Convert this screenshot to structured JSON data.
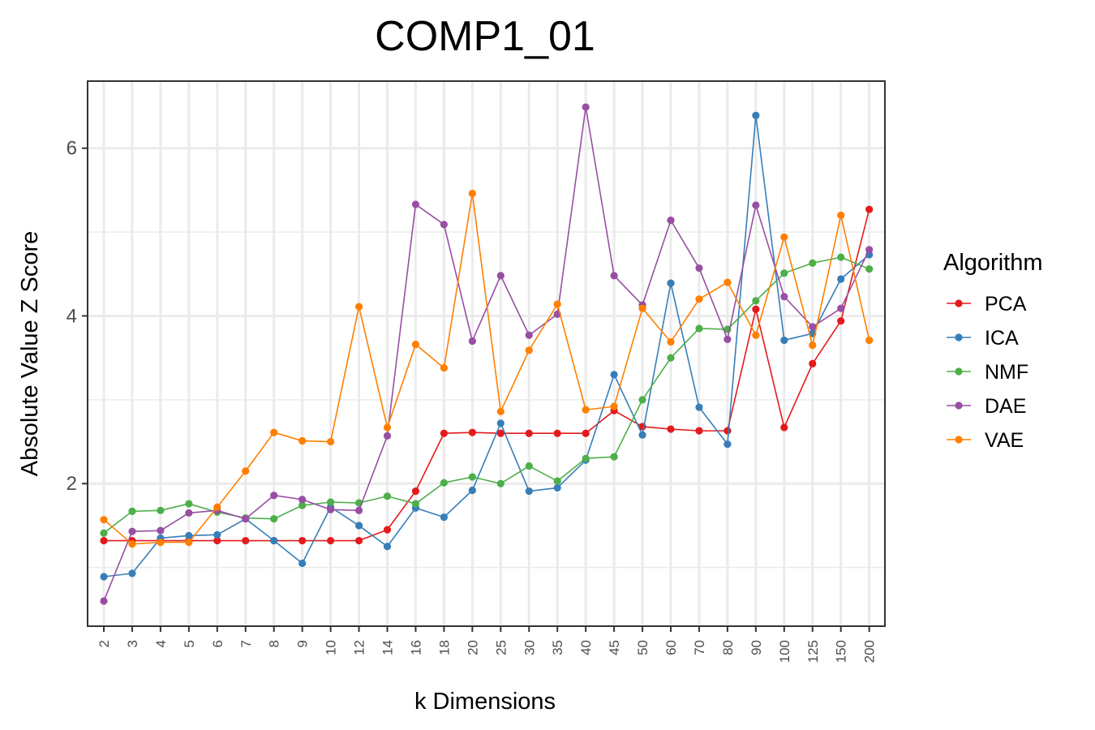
{
  "chart_data": {
    "type": "line",
    "title": "COMP1_01",
    "xlabel": "k Dimensions",
    "ylabel": "Absolute Value Z Score",
    "categories": [
      "2",
      "3",
      "4",
      "5",
      "6",
      "7",
      "8",
      "9",
      "10",
      "12",
      "14",
      "16",
      "18",
      "20",
      "25",
      "30",
      "35",
      "40",
      "45",
      "50",
      "60",
      "70",
      "80",
      "90",
      "100",
      "125",
      "150",
      "200"
    ],
    "y_ticks": [
      "2",
      "4",
      "6"
    ],
    "ylim": [
      0.3,
      6.8
    ],
    "grid": true,
    "legend": {
      "title": "Algorithm",
      "position": "right"
    },
    "series": [
      {
        "name": "PCA",
        "color": "#E41A1C",
        "values": [
          1.32,
          1.32,
          1.32,
          1.32,
          1.32,
          1.32,
          1.32,
          1.32,
          1.32,
          1.32,
          1.45,
          1.91,
          2.6,
          2.61,
          2.6,
          2.6,
          2.6,
          2.6,
          2.87,
          2.68,
          2.65,
          2.63,
          2.63,
          4.08,
          2.67,
          3.43,
          3.94,
          5.27
        ]
      },
      {
        "name": "ICA",
        "color": "#377EB8",
        "values": [
          0.89,
          0.93,
          1.35,
          1.38,
          1.39,
          1.58,
          1.32,
          1.05,
          1.72,
          1.5,
          1.25,
          1.71,
          1.6,
          1.92,
          2.72,
          1.91,
          1.95,
          2.28,
          3.3,
          2.58,
          4.39,
          2.91,
          2.47,
          6.39,
          3.71,
          3.79,
          4.44,
          4.73
        ]
      },
      {
        "name": "NMF",
        "color": "#4DAF4A",
        "values": [
          1.41,
          1.67,
          1.68,
          1.76,
          1.66,
          1.59,
          1.58,
          1.74,
          1.78,
          1.77,
          1.85,
          1.76,
          2.01,
          2.08,
          2.0,
          2.21,
          2.03,
          2.3,
          2.32,
          3.0,
          3.5,
          3.85,
          3.84,
          4.18,
          4.51,
          4.63,
          4.7,
          4.56
        ]
      },
      {
        "name": "DAE",
        "color": "#984EA3",
        "values": [
          0.6,
          1.43,
          1.44,
          1.65,
          1.68,
          1.58,
          1.86,
          1.81,
          1.69,
          1.68,
          2.57,
          5.33,
          5.09,
          3.7,
          4.48,
          3.77,
          4.02,
          6.49,
          4.48,
          4.13,
          5.14,
          4.57,
          3.72,
          5.32,
          4.23,
          3.87,
          4.09,
          4.79
        ]
      },
      {
        "name": "VAE",
        "color": "#FF7F00",
        "values": [
          1.57,
          1.28,
          1.3,
          1.3,
          1.72,
          2.15,
          2.61,
          2.51,
          2.5,
          4.11,
          2.67,
          3.66,
          3.38,
          5.46,
          2.86,
          3.59,
          4.14,
          2.88,
          2.92,
          4.09,
          3.69,
          4.2,
          4.4,
          3.77,
          4.94,
          3.65,
          5.2,
          3.71
        ]
      }
    ]
  }
}
